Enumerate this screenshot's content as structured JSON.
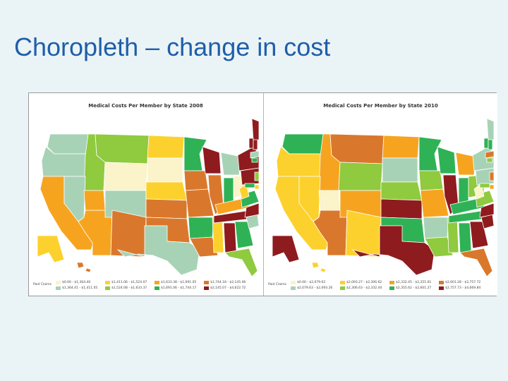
{
  "slide": {
    "title": "Choropleth – change in cost"
  },
  "palette": [
    "#fbf3c9",
    "#a8d2b6",
    "#fdd12d",
    "#8fca3f",
    "#f6a41f",
    "#2fb255",
    "#d9782c",
    "#8e1b1e"
  ],
  "maps": [
    {
      "title": "Medical Costs Per Member by State 2008",
      "legend_label": "Paid Claims",
      "legend_items": [
        "$0.00 - $1,364.40",
        "$1,364.41 - $1,411.05",
        "$1,411.06 - $1,524.07",
        "$1,524.08 - $1,633.37",
        "$1,633.38 - $1,691.05",
        "$1,691.06 - $1,744.17",
        "$1,744.18 - $2,145.06",
        "$2,145.07 - $4,622.72"
      ],
      "state_classes": {
        "WA": 1,
        "OR": 1,
        "CA": 4,
        "ID": 3,
        "NV": 1,
        "AZ": 4,
        "MT": 3,
        "WY": 0,
        "UT": 4,
        "CO": 1,
        "NM": 6,
        "ND": 2,
        "SD": 0,
        "NE": 2,
        "KS": 6,
        "OK": 6,
        "TX": 1,
        "MN": 5,
        "IA": 6,
        "MO": 6,
        "AR": 5,
        "LA": 6,
        "WI": 7,
        "IL": 6,
        "MS": 2,
        "MI": 1,
        "IN": 5,
        "OH": 0,
        "KY": 4,
        "TN": 7,
        "AL": 7,
        "GA": 5,
        "FL": 3,
        "SC": 1,
        "NC": 7,
        "VA": 5,
        "WV": 2,
        "PA": 7,
        "NY": 7,
        "ME": 7,
        "NH": 7,
        "VT": 7,
        "MA": 1,
        "CT": 5,
        "NJ": 3,
        "DE": 2,
        "MD": 5,
        "AK": 2,
        "HI": 6
      }
    },
    {
      "title": "Medical Costs Per Member by State 2010",
      "legend_label": "Paid Claims",
      "legend_items": [
        "$0.00 - $2,079.62",
        "$2,079.63 - $2,093.26",
        "$2,093.27 - $2,306.62",
        "$2,306.63 - $2,332.44",
        "$2,332.45 - $2,355.61",
        "$2,355.62 - $2,601.27",
        "$2,601.28 - $2,757.72",
        "$2,757.73 - $4,669.84"
      ],
      "state_classes": {
        "WA": 5,
        "OR": 2,
        "CA": 2,
        "ID": 4,
        "NV": 2,
        "AZ": 6,
        "MT": 6,
        "WY": 3,
        "UT": 0,
        "CO": 4,
        "NM": 2,
        "ND": 4,
        "SD": 1,
        "NE": 3,
        "KS": 7,
        "OK": 5,
        "TX": 7,
        "MN": 5,
        "IA": 3,
        "MO": 4,
        "AR": 1,
        "LA": 3,
        "WI": 5,
        "IL": 7,
        "MS": 3,
        "MI": 4,
        "IN": 5,
        "OH": 3,
        "KY": 5,
        "TN": 5,
        "AL": 5,
        "GA": 7,
        "FL": 6,
        "SC": 7,
        "NC": 7,
        "VA": 3,
        "WV": 0,
        "PA": 1,
        "NY": 1,
        "ME": 1,
        "NH": 5,
        "VT": 5,
        "MA": 6,
        "CT": 3,
        "NJ": 6,
        "DE": 4,
        "MD": 3,
        "AK": 7,
        "HI": 2
      }
    }
  ]
}
